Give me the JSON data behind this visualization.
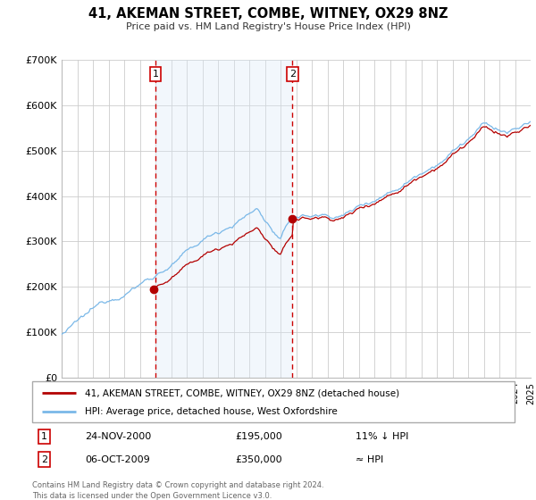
{
  "title": "41, AKEMAN STREET, COMBE, WITNEY, OX29 8NZ",
  "subtitle": "Price paid vs. HM Land Registry's House Price Index (HPI)",
  "legend_entry1": "41, AKEMAN STREET, COMBE, WITNEY, OX29 8NZ (detached house)",
  "legend_entry2": "HPI: Average price, detached house, West Oxfordshire",
  "annotation1_date": "24-NOV-2000",
  "annotation1_price": "£195,000",
  "annotation1_hpi": "11% ↓ HPI",
  "annotation2_date": "06-OCT-2009",
  "annotation2_price": "£350,000",
  "annotation2_hpi": "≈ HPI",
  "purchase1_year": 2000.9,
  "purchase1_value": 195000,
  "purchase2_year": 2009.76,
  "purchase2_value": 350000,
  "vline1_year": 2001.0,
  "vline2_year": 2009.76,
  "hpi_color": "#7ab8e8",
  "price_color": "#b30000",
  "vline_color": "#cc0000",
  "shade_color": "#daeaf8",
  "background_color": "#ffffff",
  "grid_color": "#cccccc",
  "ylim_min": 0,
  "ylim_max": 700000,
  "xlim_min": 1995,
  "xlim_max": 2025,
  "footer": "Contains HM Land Registry data © Crown copyright and database right 2024.\nThis data is licensed under the Open Government Licence v3.0.",
  "yticks": [
    0,
    100000,
    200000,
    300000,
    400000,
    500000,
    600000,
    700000
  ],
  "ytick_labels": [
    "£0",
    "£100K",
    "£200K",
    "£300K",
    "£400K",
    "£500K",
    "£600K",
    "£700K"
  ]
}
